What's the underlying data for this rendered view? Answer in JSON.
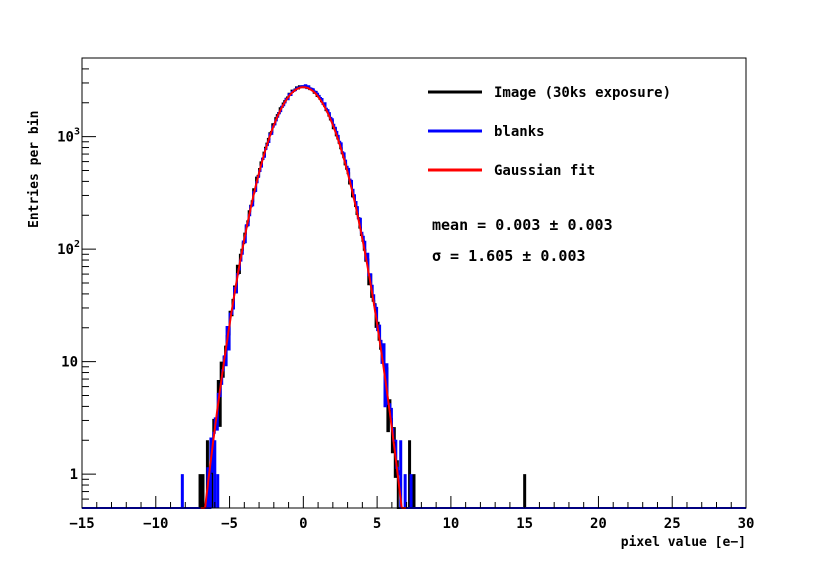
{
  "chart_data": {
    "type": "histogram",
    "title": "",
    "xlabel": "pixel value [e−]",
    "ylabel": "Entries per bin",
    "xlim": [
      -15,
      30
    ],
    "ylim": [
      0.5,
      5000
    ],
    "yscale": "log",
    "x_ticks": [
      -15,
      -10,
      -5,
      0,
      5,
      10,
      15,
      20,
      25,
      30
    ],
    "x_tick_labels": [
      "−15",
      "−10",
      "−5",
      "0",
      "5",
      "10",
      "15",
      "20",
      "25",
      "30"
    ],
    "y_ticks": [
      1,
      10,
      100,
      1000
    ],
    "y_tick_labels": [
      {
        "base": "1",
        "exp": ""
      },
      {
        "base": "10",
        "exp": ""
      },
      {
        "base": "10",
        "exp": "2"
      },
      {
        "base": "10",
        "exp": "3"
      }
    ],
    "grid": false,
    "legend_position": "top-right",
    "series": [
      {
        "name": "Image (30ks exposure)",
        "color": "#000000",
        "style": "step",
        "bin_width": 0.1,
        "gaussian": {
          "amplitude": 2800,
          "mean": 0.0,
          "sigma": 1.605
        },
        "points": [
          [
            -7.0,
            1
          ],
          [
            -6.8,
            1
          ],
          [
            -6.5,
            2
          ],
          [
            -6.2,
            2
          ],
          [
            7.2,
            2
          ],
          [
            7.5,
            1
          ],
          [
            15.0,
            1
          ]
        ]
      },
      {
        "name": "blanks",
        "color": "#0000ff",
        "style": "step",
        "bin_width": 0.1,
        "gaussian": {
          "amplitude": 2800,
          "mean": 0.05,
          "sigma": 1.61
        },
        "points": [
          [
            -8.2,
            1
          ],
          [
            -6.3,
            1
          ],
          [
            -6.0,
            2
          ],
          [
            -5.8,
            1
          ],
          [
            6.6,
            2
          ],
          [
            6.9,
            1
          ],
          [
            7.3,
            1
          ]
        ]
      },
      {
        "name": "Gaussian fit",
        "color": "#ff0000",
        "style": "line",
        "gaussian": {
          "amplitude": 2750,
          "mean": 0.003,
          "sigma": 1.605
        },
        "x_range": [
          -6.95,
          6.95
        ]
      }
    ],
    "annotations": [
      {
        "text": "mean = 0.003 ± 0.003"
      },
      {
        "text": "σ  = 1.605 ± 0.003"
      }
    ]
  }
}
